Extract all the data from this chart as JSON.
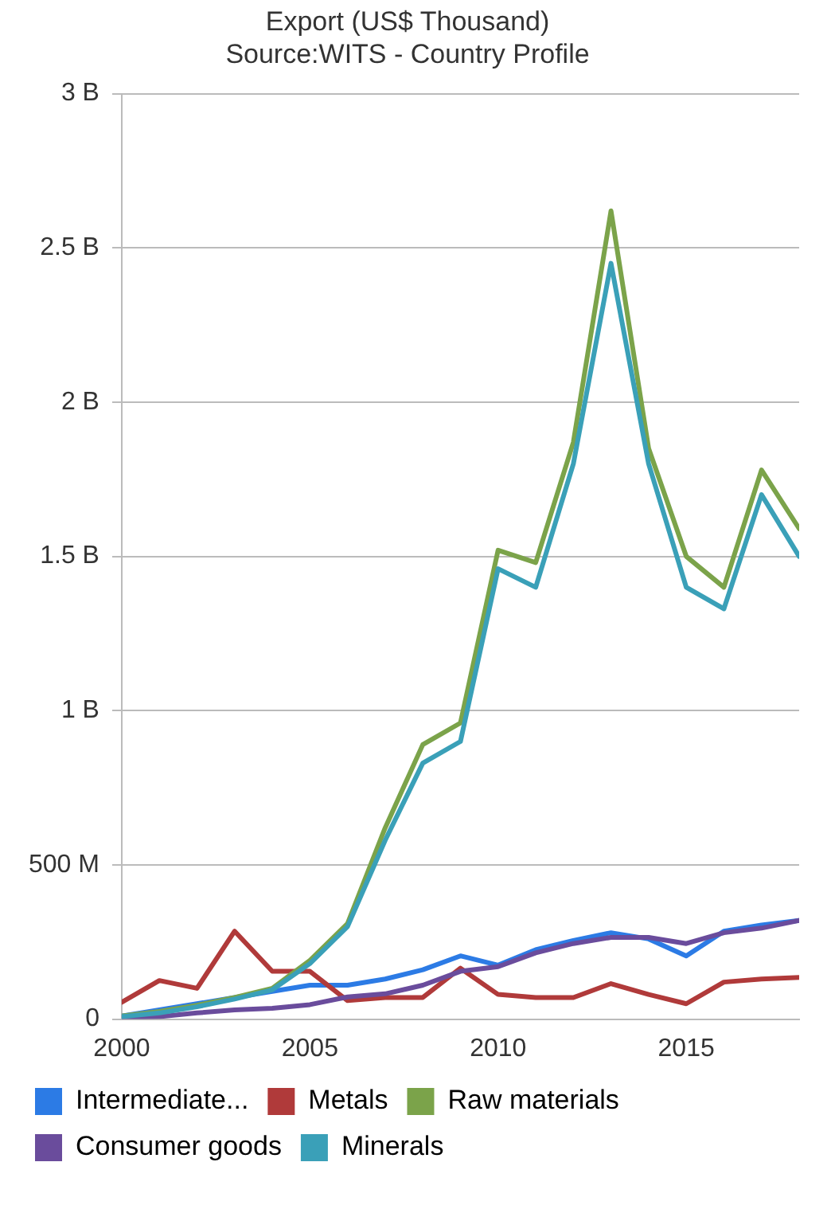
{
  "chart_data": {
    "type": "line",
    "title": "Export (US$ Thousand)",
    "subtitle": "Source:WITS - Country Profile",
    "x": [
      2000,
      2001,
      2002,
      2003,
      2004,
      2005,
      2006,
      2007,
      2008,
      2009,
      2010,
      2011,
      2012,
      2013,
      2014,
      2015,
      2016,
      2017,
      2018
    ],
    "series": [
      {
        "name": "Intermediate...",
        "color": "#2c7be5",
        "values": [
          10000000,
          30000000,
          50000000,
          70000000,
          90000000,
          110000000,
          110000000,
          130000000,
          160000000,
          205000000,
          175000000,
          225000000,
          255000000,
          280000000,
          260000000,
          205000000,
          285000000,
          305000000,
          320000000
        ]
      },
      {
        "name": "Metals",
        "color": "#b03a3a",
        "values": [
          55000000,
          125000000,
          100000000,
          285000000,
          155000000,
          155000000,
          60000000,
          70000000,
          70000000,
          165000000,
          80000000,
          70000000,
          70000000,
          115000000,
          80000000,
          50000000,
          120000000,
          130000000,
          135000000
        ]
      },
      {
        "name": "Raw materials",
        "color": "#7ba34a",
        "values": [
          10000000,
          25000000,
          45000000,
          70000000,
          100000000,
          190000000,
          310000000,
          620000000,
          890000000,
          960000000,
          1520000000,
          1480000000,
          1870000000,
          2620000000,
          1850000000,
          1500000000,
          1400000000,
          1780000000,
          1590000000
        ]
      },
      {
        "name": "Consumer goods",
        "color": "#6a4c9c",
        "values": [
          5000000,
          8000000,
          20000000,
          30000000,
          35000000,
          47000000,
          72000000,
          82000000,
          110000000,
          155000000,
          170000000,
          215000000,
          245000000,
          265000000,
          265000000,
          245000000,
          280000000,
          295000000,
          320000000
        ]
      },
      {
        "name": "Minerals",
        "color": "#3aa0b8",
        "values": [
          8000000,
          20000000,
          40000000,
          65000000,
          95000000,
          180000000,
          300000000,
          580000000,
          830000000,
          900000000,
          1460000000,
          1400000000,
          1800000000,
          2450000000,
          1800000000,
          1400000000,
          1330000000,
          1700000000,
          1500000000
        ]
      }
    ],
    "xlim": [
      2000,
      2018
    ],
    "xticks": [
      2000,
      2005,
      2010,
      2015
    ],
    "ylim": [
      0,
      3000000000
    ],
    "yticks": [
      0,
      {
        "value": 500000000,
        "label": "500 M"
      },
      {
        "value": 1000000000,
        "label": "1 B"
      },
      {
        "value": 1500000000,
        "label": "1.5 B"
      },
      {
        "value": 2000000000,
        "label": "2 B"
      },
      {
        "value": 2500000000,
        "label": "2.5 B"
      },
      {
        "value": 3000000000,
        "label": "3 B"
      }
    ],
    "grid": "y",
    "legend": "bottom",
    "marker": "none",
    "line_style": "solid"
  }
}
